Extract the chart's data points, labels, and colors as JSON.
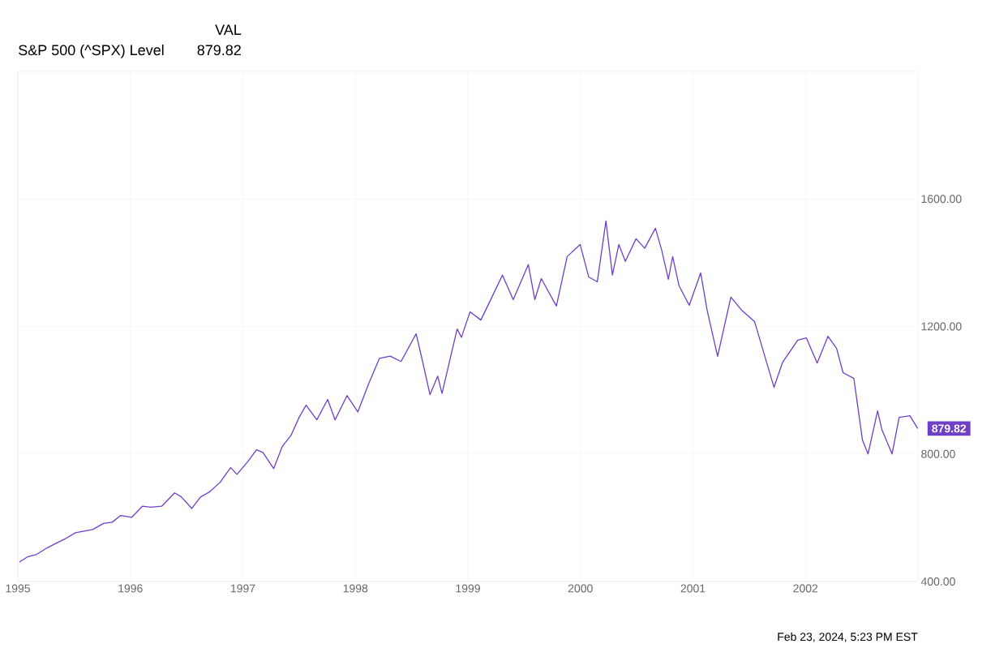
{
  "chart_data": {
    "type": "line",
    "legend_title": "VAL",
    "legend": "top left",
    "grid": true,
    "xlim": [
      "1995-01-01",
      "2003-01-01"
    ],
    "xticks": [
      {
        "value": "1995-01-01",
        "label": "1995"
      },
      {
        "value": "1996-01-01",
        "label": "1996"
      },
      {
        "value": "1997-01-01",
        "label": "1997"
      },
      {
        "value": "1998-01-01",
        "label": "1998"
      },
      {
        "value": "1999-01-01",
        "label": "1999"
      },
      {
        "value": "2000-01-01",
        "label": "2000"
      },
      {
        "value": "2001-01-01",
        "label": "2001"
      },
      {
        "value": "2002-01-01",
        "label": "2002"
      }
    ],
    "ylim": [
      400,
      2000
    ],
    "yticks": [
      {
        "value": 400,
        "label": "400.00"
      },
      {
        "value": 800,
        "label": "800.00"
      },
      {
        "value": 1200,
        "label": "1200.00"
      },
      {
        "value": 1600,
        "label": "1600.00"
      }
    ],
    "x": [
      "1995-01-06",
      "1995-02-03",
      "1995-03-03",
      "1995-04-07",
      "1995-05-05",
      "1995-06-02",
      "1995-07-07",
      "1995-08-04",
      "1995-09-01",
      "1995-10-06",
      "1995-11-03",
      "1995-12-01",
      "1996-01-05",
      "1996-02-09",
      "1996-03-08",
      "1996-04-12",
      "1996-05-24",
      "1996-06-14",
      "1996-07-19",
      "1996-08-16",
      "1996-09-13",
      "1996-10-18",
      "1996-11-22",
      "1996-12-13",
      "1997-01-17",
      "1997-02-14",
      "1997-03-07",
      "1997-04-11",
      "1997-05-09",
      "1997-06-06",
      "1997-07-03",
      "1997-07-25",
      "1997-08-29",
      "1997-10-03",
      "1997-10-27",
      "1997-12-05",
      "1998-01-09",
      "1998-02-13",
      "1998-03-20",
      "1998-04-24",
      "1998-05-29",
      "1998-07-17",
      "1998-08-07",
      "1998-08-31",
      "1998-09-25",
      "1998-10-09",
      "1998-11-27",
      "1998-12-11",
      "1999-01-08",
      "1999-02-12",
      "1999-03-19",
      "1999-04-23",
      "1999-05-28",
      "1999-07-16",
      "1999-08-06",
      "1999-08-27",
      "1999-10-15",
      "1999-11-19",
      "1999-12-31",
      "2000-01-28",
      "2000-02-25",
      "2000-03-24",
      "2000-04-14",
      "2000-05-05",
      "2000-05-26",
      "2000-06-30",
      "2000-07-28",
      "2000-09-01",
      "2000-09-22",
      "2000-10-13",
      "2000-10-27",
      "2000-11-17",
      "2000-12-20",
      "2001-01-26",
      "2001-02-16",
      "2001-03-22",
      "2001-05-04",
      "2001-06-08",
      "2001-07-20",
      "2001-09-21",
      "2001-10-19",
      "2001-12-07",
      "2002-01-04",
      "2002-02-08",
      "2002-03-15",
      "2002-04-12",
      "2002-05-03",
      "2002-06-07",
      "2002-07-05",
      "2002-07-23",
      "2002-08-23",
      "2002-09-06",
      "2002-10-09",
      "2002-11-01",
      "2002-12-06",
      "2002-12-31"
    ],
    "series": [
      {
        "name": "S&P 500 (^SPX) Level",
        "color": "#6f3fc8",
        "values": [
          461,
          478,
          485,
          506,
          520,
          533,
          553,
          558,
          563,
          582,
          586,
          607,
          601,
          636,
          633,
          636,
          678,
          666,
          629,
          665,
          680,
          710,
          757,
          736,
          776,
          813,
          805,
          754,
          824,
          858,
          916,
          953,
          907,
          971,
          907,
          983,
          932,
          1020,
          1100,
          1107,
          1090,
          1177,
          1090,
          986,
          1044,
          990,
          1192,
          1166,
          1246,
          1220,
          1290,
          1361,
          1284,
          1394,
          1284,
          1350,
          1264,
          1419,
          1457,
          1355,
          1340,
          1531,
          1361,
          1457,
          1404,
          1475,
          1445,
          1508,
          1437,
          1348,
          1419,
          1327,
          1266,
          1368,
          1251,
          1106,
          1292,
          1251,
          1215,
          1009,
          1088,
          1157,
          1164,
          1085,
          1169,
          1131,
          1055,
          1037,
          843,
          800,
          935,
          876,
          800,
          915,
          920,
          879.82
        ]
      }
    ],
    "annotations": [
      {
        "text": "879.82",
        "x": "2002-12-31",
        "y": 879.82
      },
      "879.82",
      "Feb 23, 2024, 5:23 PM EST"
    ]
  }
}
